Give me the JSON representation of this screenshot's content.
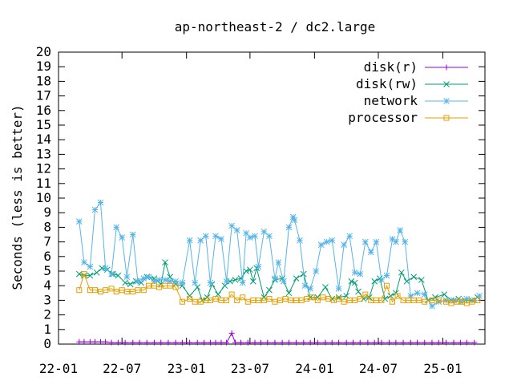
{
  "chart_data": {
    "type": "line",
    "title": "ap-northeast-2 / dc2.large",
    "xlabel": "",
    "ylabel": "Seconds (less is better)",
    "ylim": [
      0,
      20
    ],
    "yticks": [
      "0",
      "1",
      "2",
      "3",
      "4",
      "5",
      "6",
      "7",
      "8",
      "9",
      "10",
      "11",
      "12",
      "13",
      "14",
      "15",
      "16",
      "17",
      "18",
      "19",
      "20"
    ],
    "xticks": [
      "22-01",
      "22-07",
      "23-01",
      "23-07",
      "24-01",
      "24-07",
      "25-01"
    ],
    "xlim": [
      "2022-01-01",
      "2025-05-01"
    ],
    "grid": false,
    "legend_position": "top-right",
    "series": [
      {
        "name": "disk(r)",
        "color": "#9400d3",
        "marker": "plus",
        "points": [
          [
            "2022-03-01",
            0.15
          ],
          [
            "2022-03-15",
            0.15
          ],
          [
            "2022-04-01",
            0.15
          ],
          [
            "2022-04-15",
            0.15
          ],
          [
            "2022-05-01",
            0.15
          ],
          [
            "2022-05-15",
            0.15
          ],
          [
            "2022-06-01",
            0.1
          ],
          [
            "2022-06-20",
            0.1
          ],
          [
            "2022-07-10",
            0.1
          ],
          [
            "2022-08-01",
            0.1
          ],
          [
            "2022-08-20",
            0.1
          ],
          [
            "2022-09-10",
            0.1
          ],
          [
            "2022-10-01",
            0.1
          ],
          [
            "2022-10-20",
            0.1
          ],
          [
            "2022-11-10",
            0.1
          ],
          [
            "2022-12-01",
            0.1
          ],
          [
            "2022-12-20",
            0.1
          ],
          [
            "2023-01-10",
            0.1
          ],
          [
            "2023-02-01",
            0.1
          ],
          [
            "2023-02-20",
            0.1
          ],
          [
            "2023-03-10",
            0.1
          ],
          [
            "2023-03-25",
            0.1
          ],
          [
            "2023-04-10",
            0.1
          ],
          [
            "2023-04-25",
            0.1
          ],
          [
            "2023-05-10",
            0.75
          ],
          [
            "2023-05-20",
            0.1
          ],
          [
            "2023-06-05",
            0.1
          ],
          [
            "2023-06-25",
            0.1
          ],
          [
            "2023-07-15",
            0.1
          ],
          [
            "2023-08-01",
            0.1
          ],
          [
            "2023-08-20",
            0.1
          ],
          [
            "2023-09-10",
            0.1
          ],
          [
            "2023-10-01",
            0.1
          ],
          [
            "2023-10-20",
            0.1
          ],
          [
            "2023-11-10",
            0.1
          ],
          [
            "2023-12-01",
            0.1
          ],
          [
            "2023-12-20",
            0.1
          ],
          [
            "2024-01-10",
            0.1
          ],
          [
            "2024-02-01",
            0.1
          ],
          [
            "2024-02-20",
            0.1
          ],
          [
            "2024-03-10",
            0.1
          ],
          [
            "2024-04-01",
            0.1
          ],
          [
            "2024-04-20",
            0.1
          ],
          [
            "2024-05-10",
            0.1
          ],
          [
            "2024-06-01",
            0.1
          ],
          [
            "2024-06-20",
            0.1
          ],
          [
            "2024-07-10",
            0.1
          ],
          [
            "2024-08-01",
            0.1
          ],
          [
            "2024-08-20",
            0.1
          ],
          [
            "2024-09-10",
            0.1
          ],
          [
            "2024-10-01",
            0.1
          ],
          [
            "2024-10-20",
            0.1
          ],
          [
            "2024-11-10",
            0.1
          ],
          [
            "2024-12-01",
            0.1
          ],
          [
            "2024-12-20",
            0.1
          ],
          [
            "2025-01-10",
            0.1
          ],
          [
            "2025-02-01",
            0.1
          ],
          [
            "2025-02-20",
            0.1
          ],
          [
            "2025-03-10",
            0.1
          ],
          [
            "2025-04-01",
            0.1
          ]
        ]
      },
      {
        "name": "disk(rw)",
        "color": "#009e73",
        "marker": "cross",
        "points": [
          [
            "2022-03-01",
            4.8
          ],
          [
            "2022-03-15",
            4.7
          ],
          [
            "2022-04-01",
            4.7
          ],
          [
            "2022-04-20",
            4.9
          ],
          [
            "2022-05-05",
            5.2
          ],
          [
            "2022-05-20",
            5.1
          ],
          [
            "2022-06-05",
            4.8
          ],
          [
            "2022-06-20",
            4.7
          ],
          [
            "2022-07-10",
            4.2
          ],
          [
            "2022-07-25",
            4.1
          ],
          [
            "2022-08-10",
            4.3
          ],
          [
            "2022-08-25",
            4.2
          ],
          [
            "2022-09-10",
            4.6
          ],
          [
            "2022-10-01",
            4.5
          ],
          [
            "2022-10-20",
            4.1
          ],
          [
            "2022-11-01",
            5.6
          ],
          [
            "2022-11-15",
            4.6
          ],
          [
            "2022-12-01",
            4.1
          ],
          [
            "2022-12-20",
            4.0
          ],
          [
            "2023-01-10",
            3.3
          ],
          [
            "2023-02-01",
            3.9
          ],
          [
            "2023-02-15",
            3.0
          ],
          [
            "2023-03-01",
            3.2
          ],
          [
            "2023-03-15",
            4.1
          ],
          [
            "2023-04-01",
            3.4
          ],
          [
            "2023-04-20",
            4.0
          ],
          [
            "2023-05-05",
            4.3
          ],
          [
            "2023-05-20",
            4.4
          ],
          [
            "2023-06-05",
            4.5
          ],
          [
            "2023-06-20",
            5.0
          ],
          [
            "2023-07-01",
            5.1
          ],
          [
            "2023-07-10",
            4.3
          ],
          [
            "2023-07-20",
            5.2
          ],
          [
            "2023-08-10",
            3.2
          ],
          [
            "2023-08-25",
            3.7
          ],
          [
            "2023-09-10",
            4.4
          ],
          [
            "2023-10-01",
            4.5
          ],
          [
            "2023-10-20",
            3.5
          ],
          [
            "2023-11-10",
            4.5
          ],
          [
            "2023-12-01",
            4.8
          ],
          [
            "2023-12-20",
            3.2
          ],
          [
            "2024-01-10",
            3.2
          ],
          [
            "2024-02-01",
            3.9
          ],
          [
            "2024-02-20",
            3.1
          ],
          [
            "2024-03-10",
            3.2
          ],
          [
            "2024-04-01",
            3.3
          ],
          [
            "2024-04-15",
            4.3
          ],
          [
            "2024-04-25",
            4.2
          ],
          [
            "2024-05-05",
            3.6
          ],
          [
            "2024-05-20",
            3.1
          ],
          [
            "2024-06-05",
            3.2
          ],
          [
            "2024-06-20",
            4.3
          ],
          [
            "2024-07-05",
            4.5
          ],
          [
            "2024-07-20",
            3.1
          ],
          [
            "2024-08-05",
            3.3
          ],
          [
            "2024-08-20",
            3.5
          ],
          [
            "2024-09-05",
            4.9
          ],
          [
            "2024-09-20",
            4.3
          ],
          [
            "2024-10-10",
            4.6
          ],
          [
            "2024-11-01",
            4.4
          ],
          [
            "2024-11-20",
            3.0
          ],
          [
            "2024-12-10",
            3.2
          ],
          [
            "2025-01-05",
            3.4
          ],
          [
            "2025-01-25",
            3.0
          ],
          [
            "2025-02-15",
            3.1
          ],
          [
            "2025-03-05",
            3.0
          ],
          [
            "2025-03-25",
            3.0
          ],
          [
            "2025-04-10",
            3.2
          ]
        ]
      },
      {
        "name": "network",
        "color": "#56b4e9",
        "marker": "star",
        "points": [
          [
            "2022-03-01",
            8.4
          ],
          [
            "2022-03-15",
            5.6
          ],
          [
            "2022-04-01",
            5.3
          ],
          [
            "2022-04-15",
            9.2
          ],
          [
            "2022-05-01",
            9.7
          ],
          [
            "2022-05-15",
            5.2
          ],
          [
            "2022-06-01",
            4.8
          ],
          [
            "2022-06-15",
            8.0
          ],
          [
            "2022-07-01",
            7.3
          ],
          [
            "2022-07-15",
            4.6
          ],
          [
            "2022-08-01",
            7.5
          ],
          [
            "2022-08-15",
            4.3
          ],
          [
            "2022-09-01",
            4.5
          ],
          [
            "2022-09-15",
            4.6
          ],
          [
            "2022-10-01",
            4.3
          ],
          [
            "2022-10-15",
            4.4
          ],
          [
            "2022-11-01",
            4.4
          ],
          [
            "2022-11-15",
            4.3
          ],
          [
            "2022-12-01",
            4.3
          ],
          [
            "2022-12-20",
            4.2
          ],
          [
            "2023-01-10",
            7.1
          ],
          [
            "2023-01-25",
            4.2
          ],
          [
            "2023-02-10",
            7.1
          ],
          [
            "2023-02-25",
            7.4
          ],
          [
            "2023-03-10",
            4.2
          ],
          [
            "2023-03-25",
            7.4
          ],
          [
            "2023-04-10",
            7.2
          ],
          [
            "2023-04-25",
            4.3
          ],
          [
            "2023-05-10",
            8.1
          ],
          [
            "2023-05-25",
            7.8
          ],
          [
            "2023-06-10",
            4.2
          ],
          [
            "2023-06-20",
            7.6
          ],
          [
            "2023-07-01",
            7.3
          ],
          [
            "2023-07-15",
            7.4
          ],
          [
            "2023-07-25",
            5.3
          ],
          [
            "2023-08-10",
            7.7
          ],
          [
            "2023-08-25",
            7.4
          ],
          [
            "2023-09-10",
            4.5
          ],
          [
            "2023-09-20",
            5.6
          ],
          [
            "2023-10-05",
            4.3
          ],
          [
            "2023-10-20",
            8.0
          ],
          [
            "2023-11-01",
            8.7
          ],
          [
            "2023-11-05",
            8.5
          ],
          [
            "2023-11-20",
            7.1
          ],
          [
            "2023-12-05",
            4.0
          ],
          [
            "2023-12-20",
            3.8
          ],
          [
            "2024-01-05",
            5.0
          ],
          [
            "2024-01-20",
            6.8
          ],
          [
            "2024-02-05",
            7.0
          ],
          [
            "2024-02-20",
            7.1
          ],
          [
            "2024-03-10",
            3.8
          ],
          [
            "2024-03-25",
            6.8
          ],
          [
            "2024-04-10",
            7.4
          ],
          [
            "2024-04-25",
            4.9
          ],
          [
            "2024-05-10",
            4.8
          ],
          [
            "2024-05-25",
            7.0
          ],
          [
            "2024-06-10",
            6.3
          ],
          [
            "2024-06-25",
            7.0
          ],
          [
            "2024-07-10",
            4.4
          ],
          [
            "2024-07-25",
            4.7
          ],
          [
            "2024-08-10",
            7.2
          ],
          [
            "2024-08-20",
            7.0
          ],
          [
            "2024-09-01",
            7.8
          ],
          [
            "2024-09-15",
            7.0
          ],
          [
            "2024-10-01",
            3.3
          ],
          [
            "2024-10-20",
            3.5
          ],
          [
            "2024-11-10",
            3.4
          ],
          [
            "2024-12-01",
            2.6
          ],
          [
            "2024-12-20",
            2.9
          ],
          [
            "2025-01-10",
            3.0
          ],
          [
            "2025-02-01",
            3.0
          ],
          [
            "2025-02-20",
            2.9
          ],
          [
            "2025-03-10",
            3.1
          ],
          [
            "2025-04-01",
            3.0
          ],
          [
            "2025-04-15",
            3.3
          ]
        ]
      },
      {
        "name": "processor",
        "color": "#e69f00",
        "marker": "square",
        "points": [
          [
            "2022-03-01",
            3.7
          ],
          [
            "2022-03-15",
            4.8
          ],
          [
            "2022-04-01",
            3.7
          ],
          [
            "2022-04-15",
            3.7
          ],
          [
            "2022-05-01",
            3.6
          ],
          [
            "2022-05-15",
            3.7
          ],
          [
            "2022-06-01",
            3.8
          ],
          [
            "2022-06-15",
            3.6
          ],
          [
            "2022-07-01",
            3.7
          ],
          [
            "2022-07-15",
            3.6
          ],
          [
            "2022-08-01",
            3.6
          ],
          [
            "2022-08-15",
            3.7
          ],
          [
            "2022-09-01",
            3.7
          ],
          [
            "2022-09-15",
            4.0
          ],
          [
            "2022-10-01",
            4.0
          ],
          [
            "2022-10-15",
            3.9
          ],
          [
            "2022-11-01",
            4.0
          ],
          [
            "2022-11-15",
            4.0
          ],
          [
            "2022-12-01",
            3.9
          ],
          [
            "2022-12-20",
            2.9
          ],
          [
            "2023-01-10",
            3.1
          ],
          [
            "2023-01-25",
            2.9
          ],
          [
            "2023-02-10",
            2.9
          ],
          [
            "2023-02-25",
            3.0
          ],
          [
            "2023-03-10",
            3.0
          ],
          [
            "2023-03-25",
            3.1
          ],
          [
            "2023-04-10",
            3.0
          ],
          [
            "2023-04-25",
            3.0
          ],
          [
            "2023-05-10",
            3.4
          ],
          [
            "2023-05-25",
            3.0
          ],
          [
            "2023-06-10",
            3.2
          ],
          [
            "2023-06-25",
            2.9
          ],
          [
            "2023-07-10",
            3.0
          ],
          [
            "2023-07-25",
            3.0
          ],
          [
            "2023-08-10",
            3.0
          ],
          [
            "2023-08-25",
            3.1
          ],
          [
            "2023-09-10",
            2.9
          ],
          [
            "2023-09-25",
            3.0
          ],
          [
            "2023-10-10",
            3.1
          ],
          [
            "2023-10-25",
            3.0
          ],
          [
            "2023-11-10",
            3.0
          ],
          [
            "2023-11-25",
            3.0
          ],
          [
            "2023-12-10",
            3.1
          ],
          [
            "2023-12-25",
            3.2
          ],
          [
            "2024-01-10",
            3.0
          ],
          [
            "2024-01-25",
            3.2
          ],
          [
            "2024-02-10",
            3.1
          ],
          [
            "2024-02-25",
            3.0
          ],
          [
            "2024-03-10",
            3.1
          ],
          [
            "2024-03-25",
            2.9
          ],
          [
            "2024-04-10",
            3.0
          ],
          [
            "2024-04-25",
            3.0
          ],
          [
            "2024-05-10",
            3.1
          ],
          [
            "2024-05-25",
            3.4
          ],
          [
            "2024-06-10",
            3.0
          ],
          [
            "2024-06-25",
            3.0
          ],
          [
            "2024-07-10",
            3.0
          ],
          [
            "2024-07-25",
            4.0
          ],
          [
            "2024-08-10",
            2.9
          ],
          [
            "2024-08-25",
            3.3
          ],
          [
            "2024-09-10",
            3.0
          ],
          [
            "2024-09-25",
            3.0
          ],
          [
            "2024-10-10",
            3.0
          ],
          [
            "2024-10-25",
            3.0
          ],
          [
            "2024-11-10",
            2.9
          ],
          [
            "2024-12-01",
            3.0
          ],
          [
            "2024-12-20",
            3.0
          ],
          [
            "2025-01-10",
            2.9
          ],
          [
            "2025-01-25",
            2.8
          ],
          [
            "2025-02-10",
            2.9
          ],
          [
            "2025-02-25",
            2.9
          ],
          [
            "2025-03-10",
            2.8
          ],
          [
            "2025-03-25",
            2.9
          ],
          [
            "2025-04-10",
            3.0
          ]
        ]
      }
    ]
  }
}
